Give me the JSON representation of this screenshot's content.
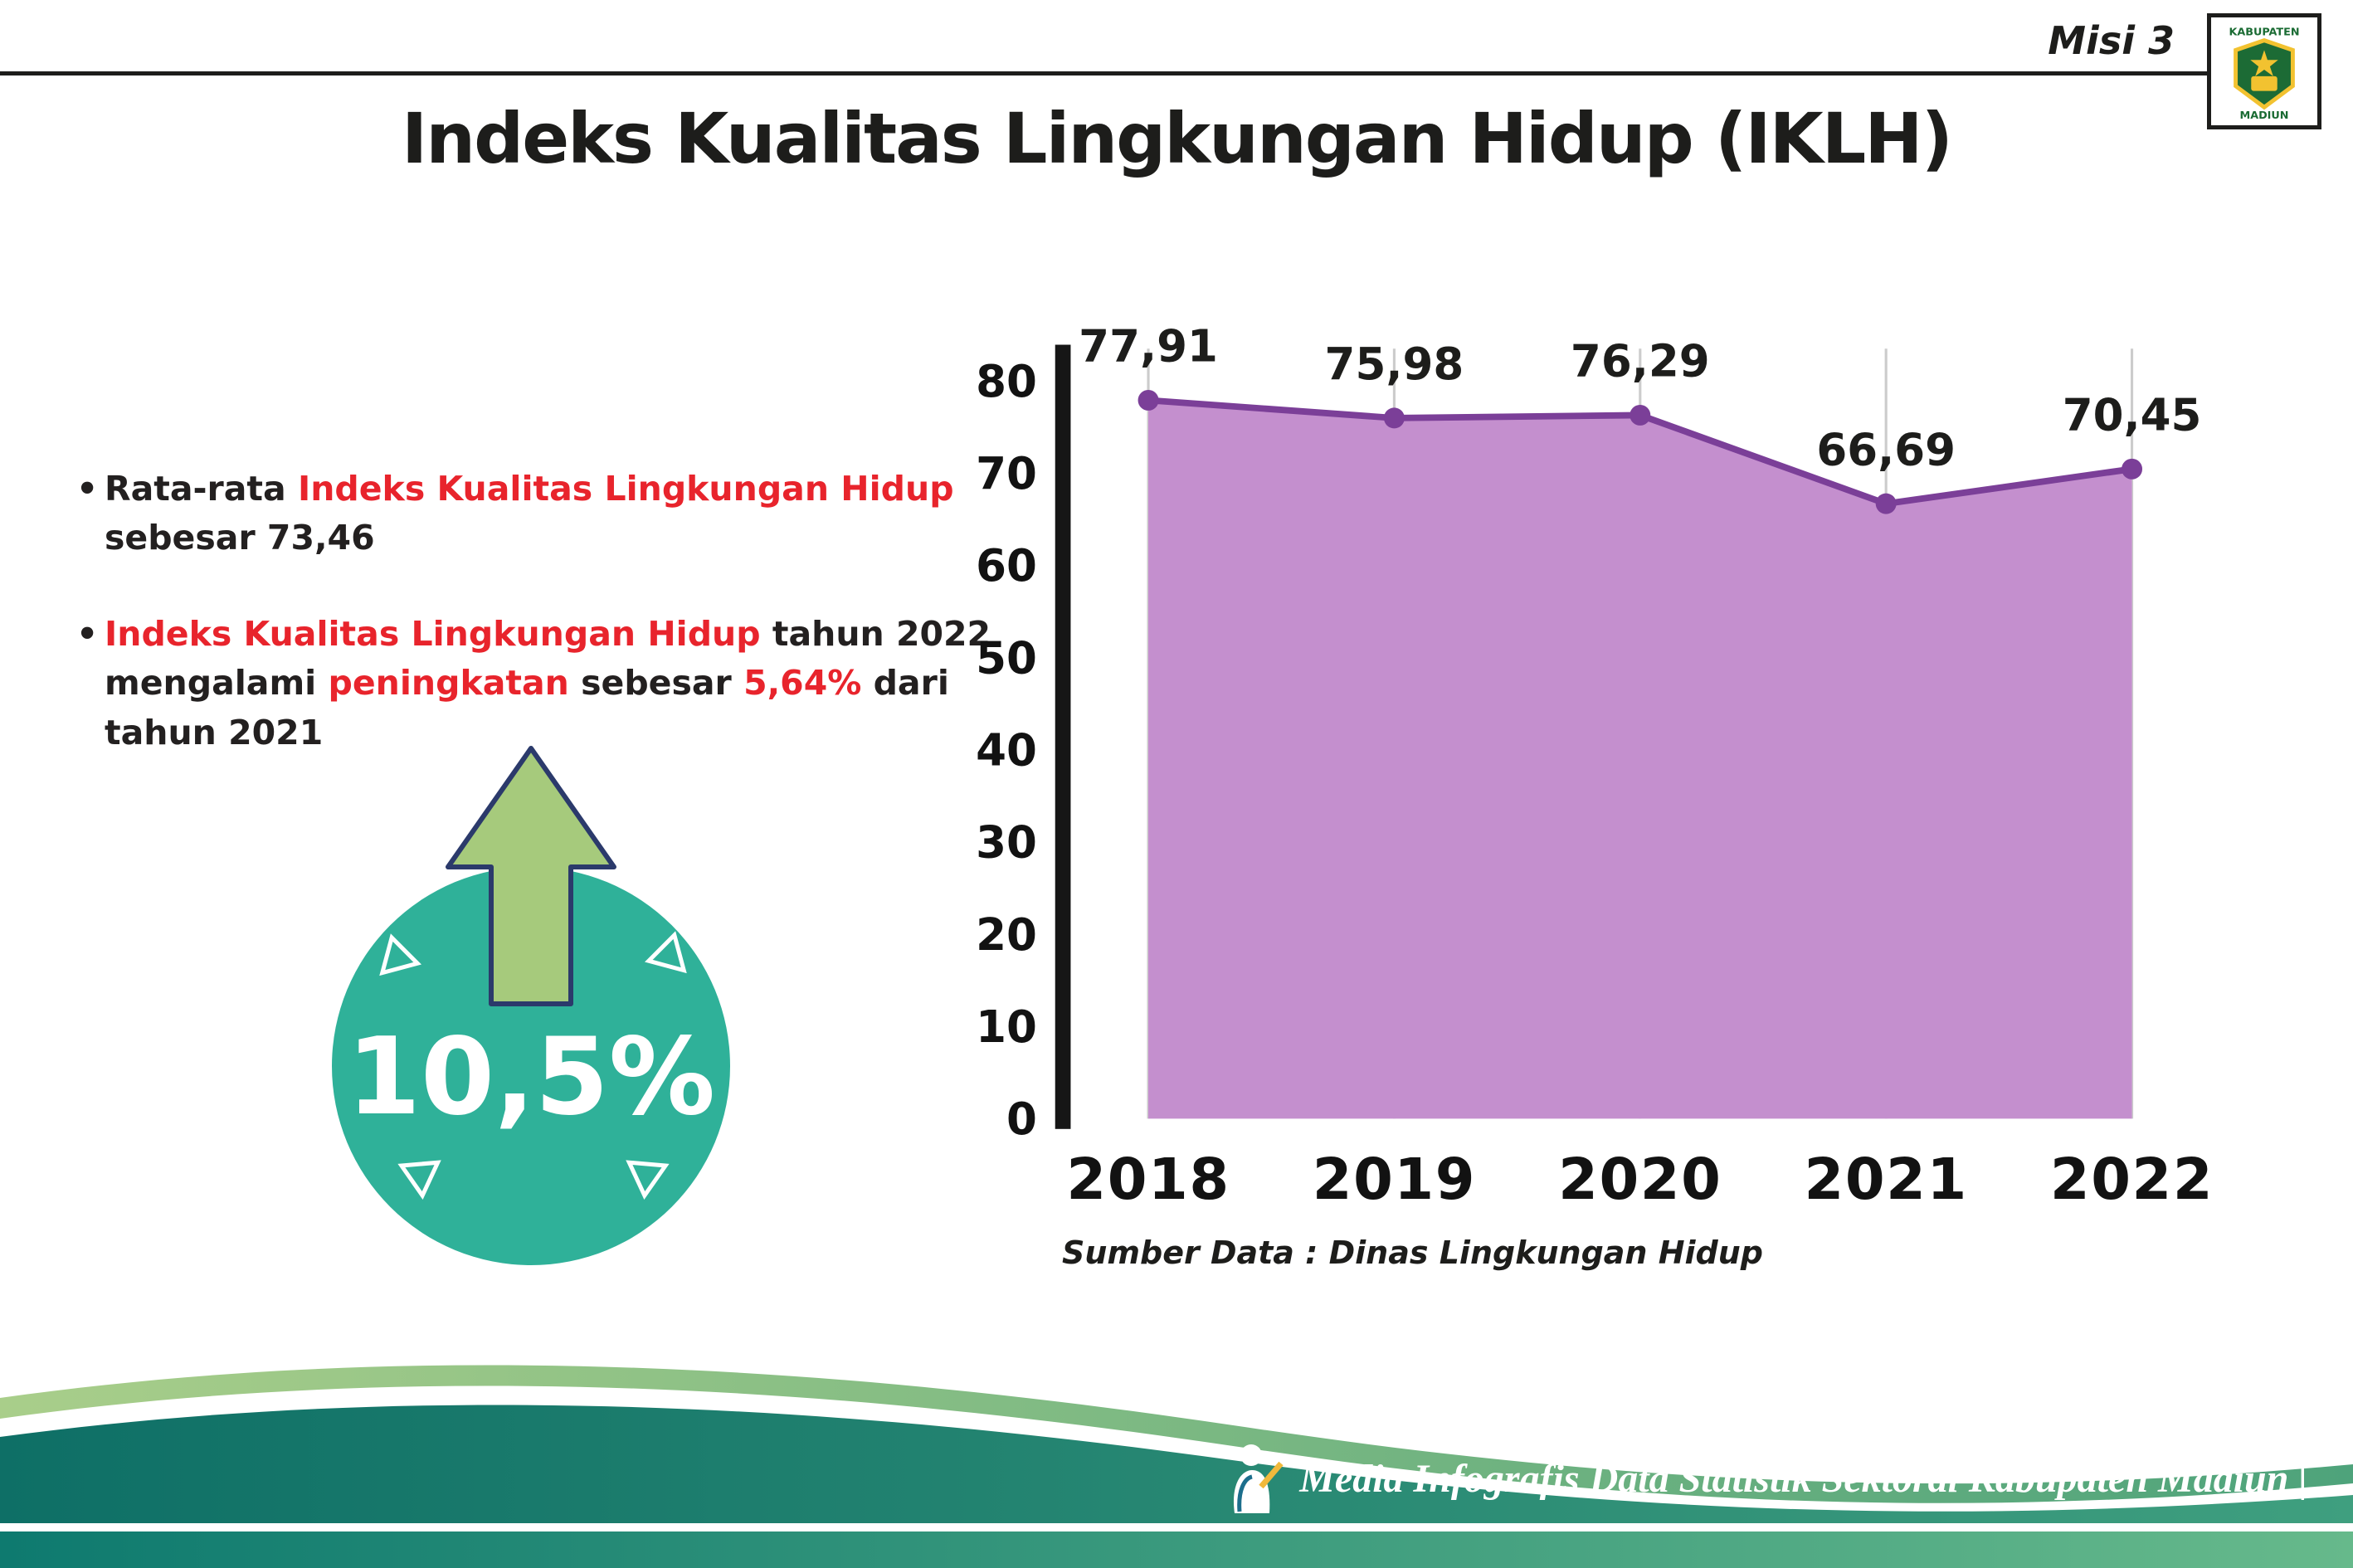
{
  "header": {
    "misi_label": "Misi 3",
    "logo": {
      "name": "Logo Kabupaten Madiun",
      "text_top": "KABUPATEN",
      "text_bottom": "MADIUN"
    }
  },
  "title": "Indeks Kualitas Lingkungan Hidup (IKLH)",
  "bullets": [
    {
      "segments": [
        {
          "text": "Rata-rata ",
          "style": "dark"
        },
        {
          "text": "Indeks Kualitas Lingkungan Hidup",
          "style": "red"
        },
        {
          "text": " sebesar 73,46",
          "style": "dark"
        }
      ]
    },
    {
      "segments": [
        {
          "text": "Indeks Kualitas Lingkungan Hidup",
          "style": "red"
        },
        {
          "text": " tahun 2022 mengalami ",
          "style": "dark"
        },
        {
          "text": "peningkatan",
          "style": "red"
        },
        {
          "text": " sebesar ",
          "style": "dark"
        },
        {
          "text": "5,64%",
          "style": "red"
        },
        {
          "text": " dari tahun 2021",
          "style": "dark"
        }
      ]
    }
  ],
  "badge": {
    "value": "10,5%",
    "circle_color": "#2fb199",
    "arrow_color": "#a6ca7c",
    "arrow_outline": "#2b3a6b"
  },
  "chart_data": {
    "type": "area",
    "categories": [
      "2018",
      "2019",
      "2020",
      "2021",
      "2022"
    ],
    "values": [
      77.91,
      75.98,
      76.29,
      66.69,
      70.45
    ],
    "point_labels": [
      "77,91",
      "75,98",
      "76,29",
      "66,69",
      "70,45"
    ],
    "ylim": [
      0,
      80
    ],
    "yticks": [
      0,
      10,
      20,
      30,
      40,
      50,
      60,
      70,
      80
    ],
    "grid": "vertical",
    "legend": "none",
    "line_color": "#7b3f98",
    "fill_color": "#c48fce",
    "source": "Sumber Data : Dinas Lingkungan Hidup"
  },
  "footer": {
    "text": "Media Infografis Data Statistik Sektoral Kabupaten Madiun |",
    "icon": "writer-mascot"
  },
  "colors": {
    "red_accent": "#e8242c",
    "text_dark": "#231f20",
    "footer_teal_dark": "#0e6f66",
    "footer_green_light": "#8cc17f"
  }
}
